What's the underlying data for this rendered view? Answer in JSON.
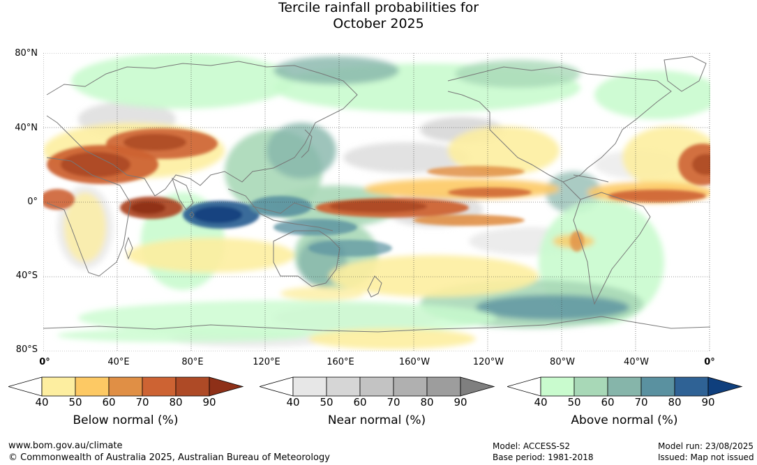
{
  "title_line1": "Tercile rainfall probabilities for",
  "title_line2": "October 2025",
  "map": {
    "lat_labels": [
      "80°N",
      "40°N",
      "0°",
      "40°S",
      "80°S"
    ],
    "lon_labels": [
      "0°",
      "40°E",
      "80°E",
      "120°E",
      "160°E",
      "160°W",
      "120°W",
      "80°W",
      "40°W",
      "0°"
    ],
    "colors": {
      "land_outline": "#777777",
      "grid": "#333333"
    }
  },
  "colorbars": [
    {
      "title": "Below normal (%)",
      "ticks": [
        "40",
        "50",
        "60",
        "70",
        "80",
        "90"
      ],
      "colors": [
        "#ffffff",
        "#fdeea0",
        "#fdc964",
        "#e08f45",
        "#cd6333",
        "#ae4a26",
        "#8e3018"
      ]
    },
    {
      "title": "Near normal (%)",
      "ticks": [
        "40",
        "50",
        "60",
        "70",
        "80",
        "90"
      ],
      "colors": [
        "#ffffff",
        "#e7e7e7",
        "#d6d6d6",
        "#c3c3c3",
        "#b0b0b0",
        "#9d9d9d",
        "#7f7f7f"
      ]
    },
    {
      "title": "Above normal (%)",
      "ticks": [
        "40",
        "50",
        "60",
        "70",
        "80",
        "90"
      ],
      "colors": [
        "#ffffff",
        "#c9fbce",
        "#a8d8b7",
        "#86b5aa",
        "#5a91a0",
        "#2f6295",
        "#0f3f7d"
      ]
    }
  ],
  "footer": {
    "website": "www.bom.gov.au/climate",
    "copyright": "© Commonwealth of Australia 2025, Australian Bureau of Meteorology",
    "model": "Model: ACCESS-S2",
    "base_period": "Base period: 1981-2018",
    "model_run": "Model run: 23/08/2025",
    "issued": "Issued: Map not issued"
  }
}
